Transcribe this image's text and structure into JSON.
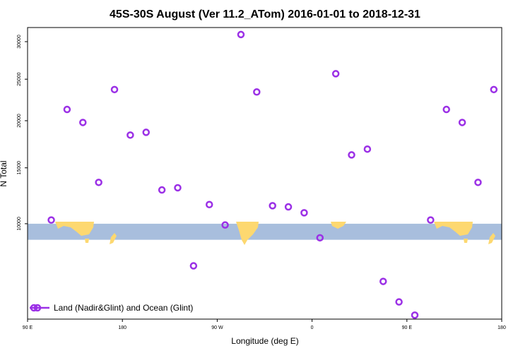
{
  "chart_data": {
    "type": "scatter",
    "title": "45S-30S August (Ver 11.2_ATom)   2016-01-01 to 2018-12-31",
    "xlabel": "Longitude (deg E)",
    "ylabel": "N Total",
    "xlim": [
      90,
      540
    ],
    "ylim": [
      3800,
      32000
    ],
    "y_scale": "sqrt",
    "x_ticks": [
      {
        "value": 90,
        "label": "90 E"
      },
      {
        "value": 180,
        "label": "180"
      },
      {
        "value": 270,
        "label": "90 W"
      },
      {
        "value": 360,
        "label": "0"
      },
      {
        "value": 450,
        "label": "90 E"
      },
      {
        "value": 540,
        "label": "180"
      }
    ],
    "y_ticks": [
      {
        "value": 10000,
        "label": "10000"
      },
      {
        "value": 15000,
        "label": "15000"
      },
      {
        "value": 20000,
        "label": "20000"
      },
      {
        "value": 25000,
        "label": "25000"
      },
      {
        "value": 30000,
        "label": "30000"
      }
    ],
    "series": [
      {
        "name": "Land (Nadir&Glint) and Ocean (Glint)",
        "color": "#9b30e6",
        "x": [
          112.5,
          127.5,
          142.5,
          157.5,
          172.5,
          187.5,
          202.5,
          217.5,
          232.5,
          247.5,
          262.5,
          277.5,
          292.5,
          307.5,
          322.5,
          337.5,
          352.5,
          367.5,
          382.5,
          397.5,
          412.5,
          427.5,
          442.5,
          457.5,
          472.5,
          487.5,
          502.5,
          517.5,
          532.5
        ],
        "y": [
          10300,
          21300,
          19800,
          13600,
          23700,
          18400,
          18700,
          12900,
          13100,
          6900,
          11600,
          9900,
          31000,
          23400,
          11500,
          11400,
          10900,
          8900,
          25700,
          16300,
          16900,
          5900,
          4700,
          4000,
          10300,
          21300,
          19800,
          13600,
          23700
        ]
      }
    ],
    "legend": {
      "position": "bottom-left",
      "label": "Land (Nadir&Glint) and Ocean (Glint)"
    },
    "background_band": {
      "y_range": [
        8750,
        10000
      ],
      "ocean_color": "#a8bedd",
      "land_color": "#fdd870"
    },
    "grid": false
  }
}
